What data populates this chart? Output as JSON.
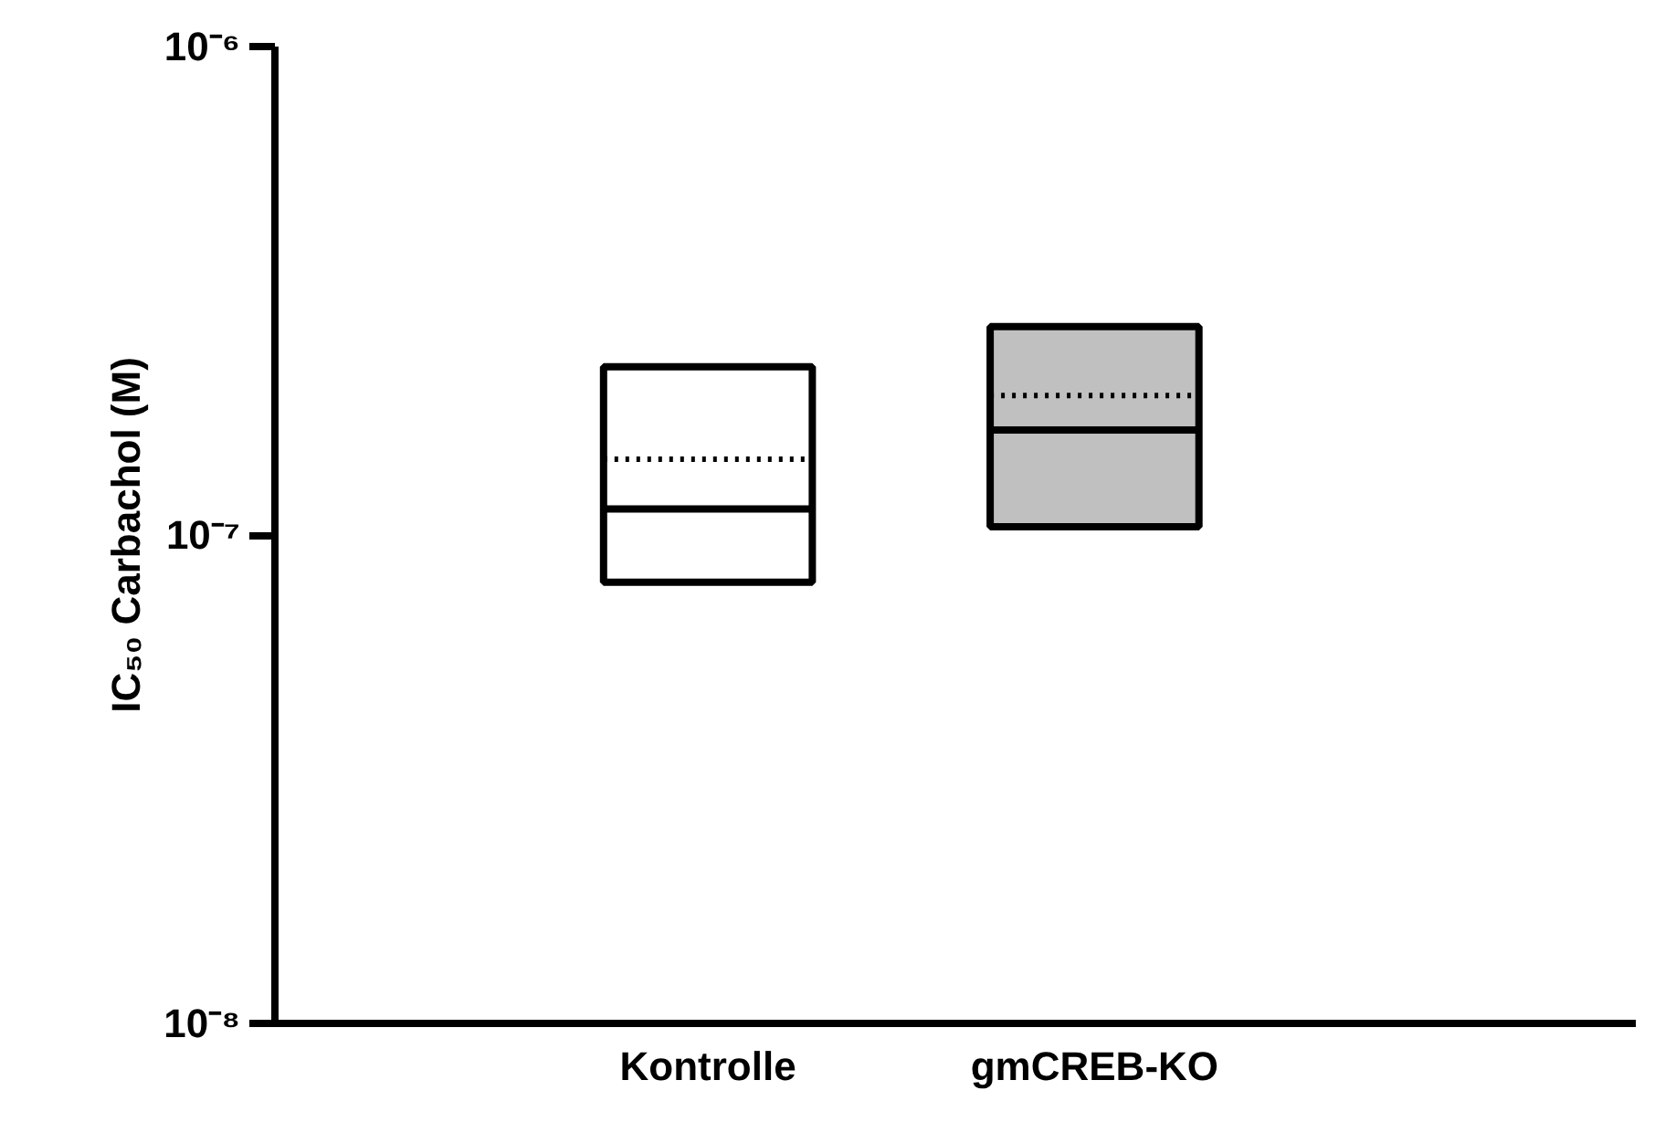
{
  "chart_data": {
    "type": "box",
    "ylabel": "IC₅₀ Carbachol (M)",
    "categories": [
      "Kontrolle",
      "gmCREB-KO"
    ],
    "colors": [
      "#ffffff",
      "#c0c0c0"
    ],
    "boxes": [
      {
        "low": 8e-08,
        "q1": 8e-08,
        "median": 1.13e-07,
        "q3": 2.21e-07,
        "high": 2.21e-07,
        "mean": 1.43e-07
      },
      {
        "low": 1.04e-07,
        "q1": 1.04e-07,
        "median": 1.64e-07,
        "q3": 2.67e-07,
        "high": 2.67e-07,
        "mean": 1.93e-07
      }
    ],
    "log": "y",
    "ylim": [
      1e-08,
      1e-06
    ],
    "yticks": [
      {
        "value": 1e-08,
        "label": "10⁻⁸"
      },
      {
        "value": 1e-07,
        "label": "10⁻⁷"
      },
      {
        "value": 1e-06,
        "label": "10⁻⁶"
      }
    ],
    "grid": false
  }
}
